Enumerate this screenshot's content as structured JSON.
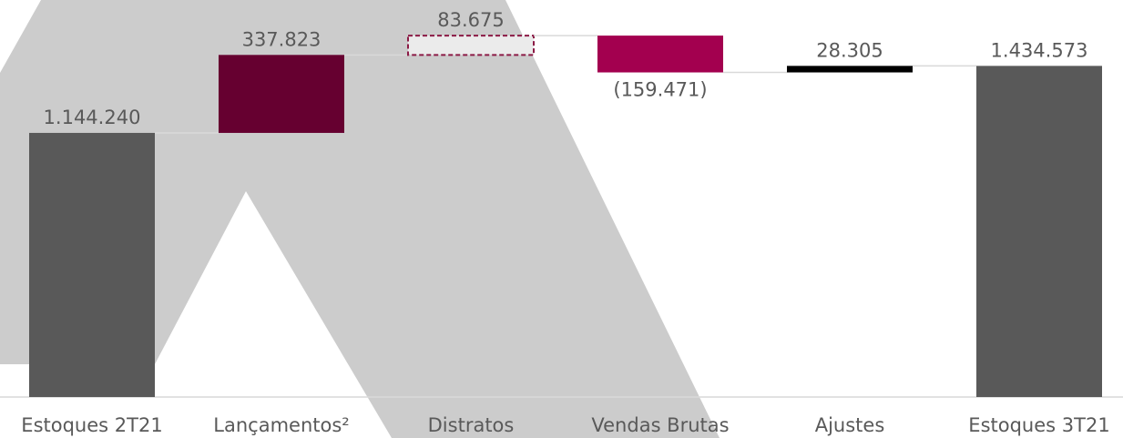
{
  "chart_data": {
    "type": "waterfall",
    "categories": [
      "Estoques 2T21",
      "Lançamentos²",
      "Distratos",
      "Vendas Brutas",
      "Ajustes",
      "Estoques 3T21"
    ],
    "values": [
      1144240,
      337823,
      83675,
      -159471,
      28305,
      1434573
    ],
    "value_labels": [
      "1.144.240",
      "337.823",
      "83.675",
      "(159.471)",
      "28.305",
      "1.434.573"
    ],
    "measures": [
      "absolute",
      "relative",
      "relative",
      "relative",
      "relative",
      "absolute"
    ],
    "colors": [
      "#595959",
      "#660030",
      "#ebebeb",
      "#a3004f",
      "#000000",
      "#595959"
    ],
    "dashed": [
      false,
      false,
      true,
      false,
      false,
      false
    ],
    "ylim": [
      0,
      1720000
    ]
  }
}
